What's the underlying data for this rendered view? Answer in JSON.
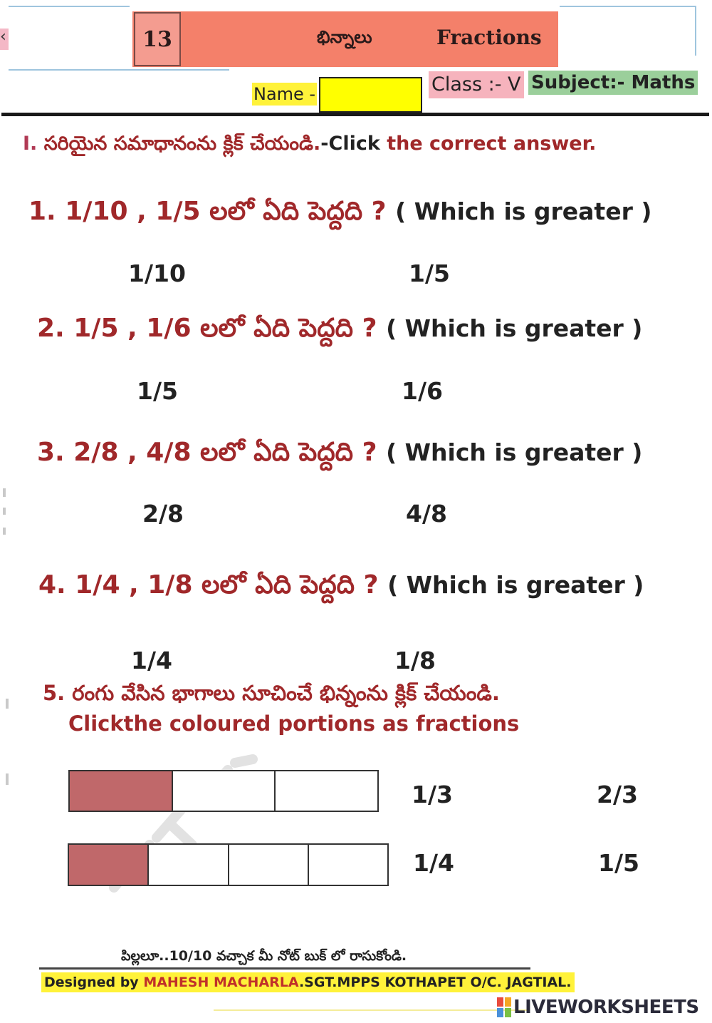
{
  "header": {
    "chapter_number": "13",
    "chapter_title_telugu": "భిన్నాలు",
    "chapter_title": "Fractions",
    "name_label": "Name -",
    "name_value": "",
    "class_label": "Class :- V",
    "subject_label": "Subject:- Maths"
  },
  "instruction": {
    "roman": "I.",
    "telugu": "సరియైన సమాధానంను క్లిక్ చేయండి.",
    "english_dark": "-Click",
    "english": " the correct answer."
  },
  "questions": [
    {
      "prompt": "1. 1/10 , 1/5 లలో ఏది పెద్దది ?",
      "english": "( Which is greater )",
      "options": [
        "1/10",
        "1/5"
      ]
    },
    {
      "prompt": "2. 1/5 , 1/6 లలో ఏది పెద్దది ?",
      "english": "( Which is greater )",
      "options": [
        "1/5",
        "1/6"
      ]
    },
    {
      "prompt": "3. 2/8 , 4/8 లలో ఏది పెద్దది ?",
      "english": "( Which is greater )",
      "options": [
        "2/8",
        "4/8"
      ]
    },
    {
      "prompt": "4. 1/4 , 1/8 లలో ఏది పెద్దది ?",
      "english": "( Which is greater )",
      "options": [
        "1/4",
        "1/8"
      ]
    }
  ],
  "question5": {
    "line1": "5. రంగు వేసిన భాగాలు సూచించే భిన్నంను క్లిక్ చేయండి.",
    "line2": "Clickthe coloured portions as fractions",
    "items": [
      {
        "parts": 3,
        "shaded": 1,
        "options": [
          "1/3",
          "2/3"
        ]
      },
      {
        "parts": 4,
        "shaded": 1,
        "options": [
          "1/4",
          "1/5"
        ]
      }
    ],
    "shade_color": "#c0686a"
  },
  "footer": {
    "telugu_note": "పిల్లలూ..10/10 వచ్చాక మీ నోట్ బుక్ లో రాసుకోండి.",
    "designed_by": "Designed by ",
    "author": "MAHESH MACHARLA",
    "school": ".SGT.MPPS KOTHAPET O/C. JAGTIAL."
  },
  "branding": {
    "logo_text": "LIVEWORKSHEETS",
    "logo_colors": [
      "#e94b3c",
      "#f5a623",
      "#4a90d9",
      "#7ac143"
    ]
  }
}
